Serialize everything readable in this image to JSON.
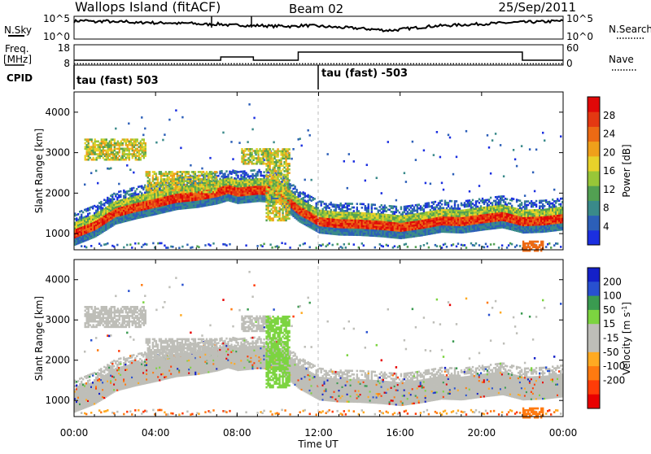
{
  "header": {
    "station": "Wallops Island (fitACF)",
    "beam": "Beam 02",
    "date": "25/Sep/2011"
  },
  "aux_panels": {
    "nsky": {
      "label": "N.Sky",
      "ticks": [
        "10^5",
        "10^0"
      ],
      "right_label": "N.Search",
      "right_ticks": [
        "10^5",
        "10^0"
      ],
      "samples": [
        0.78,
        0.82,
        0.75,
        0.8,
        0.72,
        0.78,
        0.7,
        0.74,
        0.7,
        0.72,
        0.68,
        0.7,
        0.66,
        0.64,
        0.66,
        0.6,
        0.62,
        0.58,
        0.6,
        0.56,
        0.58,
        0.55,
        0.6,
        0.58,
        0.55,
        0.52,
        0.5,
        0.48,
        0.45,
        0.42,
        0.38,
        0.4,
        0.46,
        0.5,
        0.55,
        0.58,
        0.6,
        0.62,
        0.64,
        0.66,
        0.68,
        0.7,
        0.72,
        0.74,
        0.75,
        0.76,
        0.78,
        0.8
      ]
    },
    "freq": {
      "label": "Freq.",
      "unit": "[MHz]",
      "ticks": [
        "18",
        "8"
      ],
      "right_label": "Nave",
      "right_ticks": [
        "60",
        "0"
      ],
      "steps": [
        {
          "t0": 0.0,
          "t1": 7.2,
          "v": 10.4
        },
        {
          "t0": 7.2,
          "t1": 8.8,
          "v": 12.0
        },
        {
          "t0": 8.8,
          "t1": 11.0,
          "v": 10.4
        },
        {
          "t0": 11.0,
          "t1": 22.0,
          "v": 14.4
        },
        {
          "t0": 22.0,
          "t1": 24.0,
          "v": 10.4
        }
      ],
      "nave": [
        {
          "t0": 0.0,
          "t1": 24.0,
          "v": 4
        }
      ]
    },
    "cpid": {
      "label": "CPID",
      "entries": [
        {
          "t": 0.0,
          "text": "tau (fast) 503"
        },
        {
          "t": 12.0,
          "text": "tau (fast) -503"
        }
      ]
    }
  },
  "colors": {
    "power_scale": [
      "#1b2fe0",
      "#2c5fb8",
      "#3a8a8a",
      "#52a052",
      "#98c638",
      "#e8d22a",
      "#f0a01a",
      "#ec6a14",
      "#e43812",
      "#e00808"
    ],
    "velocity_scale": [
      "#1420c8",
      "#2850d0",
      "#3a9a50",
      "#7cd440",
      "#bebeb8",
      "#bebeb8",
      "#ffaa22",
      "#ff7a10",
      "#ff3c08",
      "#e80000"
    ]
  },
  "chart_data": [
    {
      "type": "heatmap",
      "name": "power",
      "xlabel": "",
      "ylabel": "Slant Range [km]",
      "x_range": [
        0,
        24
      ],
      "y_range": [
        600,
        4500
      ],
      "yticks": [
        1000,
        2000,
        3000,
        4000
      ],
      "colorbar": {
        "label": "Power [dB]",
        "range": [
          0,
          32
        ],
        "ticks": [
          4,
          8,
          12,
          16,
          20,
          24,
          28
        ]
      },
      "band_center": [
        [
          0.0,
          1000
        ],
        [
          1.0,
          1200
        ],
        [
          2.0,
          1520
        ],
        [
          3.0,
          1650
        ],
        [
          4.0,
          1760
        ],
        [
          5.0,
          1880
        ],
        [
          6.0,
          1930
        ],
        [
          7.0,
          2020
        ],
        [
          7.5,
          2100
        ],
        [
          8.0,
          2030
        ],
        [
          9.0,
          2080
        ],
        [
          10.0,
          2050
        ],
        [
          10.5,
          1800
        ],
        [
          11.0,
          1580
        ],
        [
          12.0,
          1300
        ],
        [
          13.0,
          1250
        ],
        [
          14.0,
          1240
        ],
        [
          15.0,
          1210
        ],
        [
          16.0,
          1160
        ],
        [
          17.0,
          1230
        ],
        [
          18.0,
          1320
        ],
        [
          19.0,
          1300
        ],
        [
          20.0,
          1370
        ],
        [
          21.0,
          1430
        ],
        [
          22.0,
          1300
        ],
        [
          23.0,
          1320
        ],
        [
          24.0,
          1380
        ]
      ],
      "patches": [
        {
          "t0": 8.2,
          "t1": 9.6,
          "r0": 2700,
          "r1": 3100
        },
        {
          "t0": 9.4,
          "t1": 10.6,
          "r0": 1300,
          "r1": 3100
        },
        {
          "t0": 22.0,
          "t1": 23.0,
          "r0": 550,
          "r1": 800
        },
        {
          "t0": 0.5,
          "t1": 3.5,
          "r0": 2800,
          "r1": 3300
        },
        {
          "t0": 3.5,
          "t1": 7.0,
          "r0": 2000,
          "r1": 2500
        }
      ]
    },
    {
      "type": "heatmap",
      "name": "velocity",
      "xlabel": "Time UT",
      "ylabel": "Slant Range [km]",
      "x_range": [
        0,
        24
      ],
      "y_range": [
        600,
        4500
      ],
      "yticks": [
        1000,
        2000,
        3000,
        4000
      ],
      "xticks": [
        "00:00",
        "04:00",
        "08:00",
        "12:00",
        "16:00",
        "20:00",
        "00:00"
      ],
      "colorbar": {
        "label": "Velocity [m s^-1]",
        "range": [
          -250,
          250
        ],
        "ticks": [
          200,
          100,
          50,
          15,
          -15,
          -50,
          -100,
          -200
        ]
      }
    }
  ]
}
